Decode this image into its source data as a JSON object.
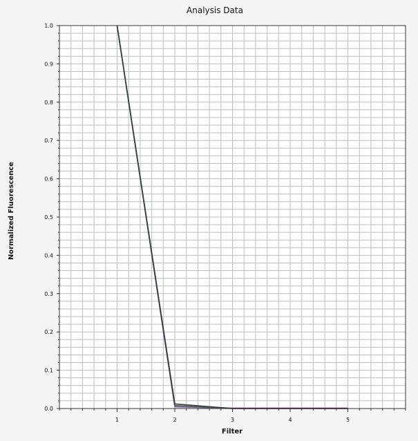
{
  "chart_data": {
    "type": "line",
    "title": "Analysis Data",
    "xlabel": "Filter",
    "ylabel": "Normalized Fluorescence",
    "xlim": [
      0,
      6
    ],
    "ylim": [
      0,
      1
    ],
    "x_ticks": [
      1,
      2,
      3,
      4,
      5
    ],
    "y_ticks": [
      0.0,
      0.1,
      0.2,
      0.3,
      0.4,
      0.5,
      0.6,
      0.7,
      0.8,
      0.9,
      1.0
    ],
    "y_tick_labels": [
      "0.0",
      "0.1",
      "0.2",
      "0.3",
      "0.4",
      "0.5",
      "0.6",
      "0.7",
      "0.8",
      "0.9",
      "1.0"
    ],
    "grid": true,
    "series": [
      {
        "color": "#2e3d3a",
        "x": [
          1,
          2,
          3,
          4,
          5
        ],
        "y": [
          1.0,
          0.012,
          0.0,
          0.0,
          0.0
        ]
      },
      {
        "color": "#5a5a5a",
        "x": [
          1,
          2,
          3,
          4,
          5
        ],
        "y": [
          1.0,
          0.008,
          0.0,
          0.0,
          0.0
        ]
      },
      {
        "color": "#6b6f9a",
        "x": [
          1,
          2,
          3,
          4,
          5
        ],
        "y": [
          1.0,
          0.005,
          0.0,
          0.0,
          0.0
        ]
      },
      {
        "color": "#e070c8",
        "x": [
          1,
          2,
          3,
          4,
          5
        ],
        "y": [
          1.0,
          0.004,
          0.0015,
          0.0015,
          0.0015
        ]
      }
    ]
  }
}
